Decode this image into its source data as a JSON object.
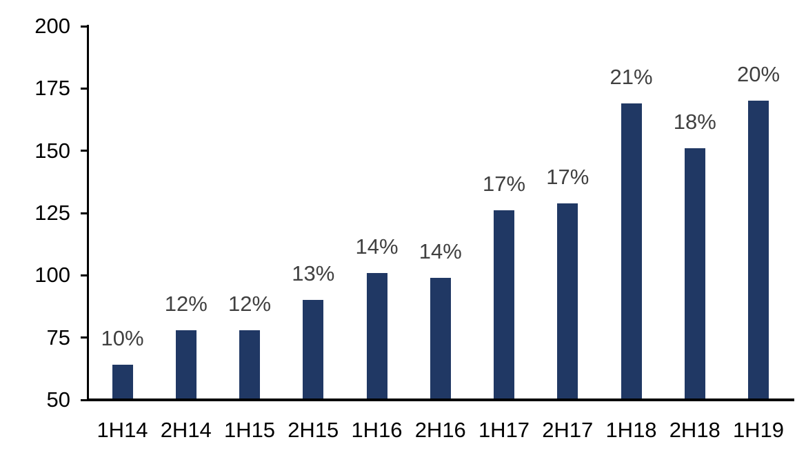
{
  "chart_data": {
    "type": "bar",
    "title": "",
    "categories": [
      "1H14",
      "2H14",
      "1H15",
      "2H15",
      "1H16",
      "2H16",
      "1H17",
      "2H17",
      "1H18",
      "2H18",
      "1H19"
    ],
    "values": [
      64,
      78,
      78,
      90,
      101,
      99,
      126,
      129,
      169,
      151,
      170
    ],
    "data_labels": [
      "10%",
      "12%",
      "12%",
      "13%",
      "14%",
      "14%",
      "17%",
      "17%",
      "21%",
      "18%",
      "20%"
    ],
    "xlabel": "",
    "ylabel": "",
    "ylim": [
      50,
      200
    ],
    "yticks": [
      50,
      75,
      100,
      125,
      150,
      175,
      200
    ],
    "grid": false,
    "legend": "none",
    "bar_color": "#203864",
    "data_label_color": "#404040",
    "axis_color": "#000000",
    "background_color": "#ffffff"
  }
}
